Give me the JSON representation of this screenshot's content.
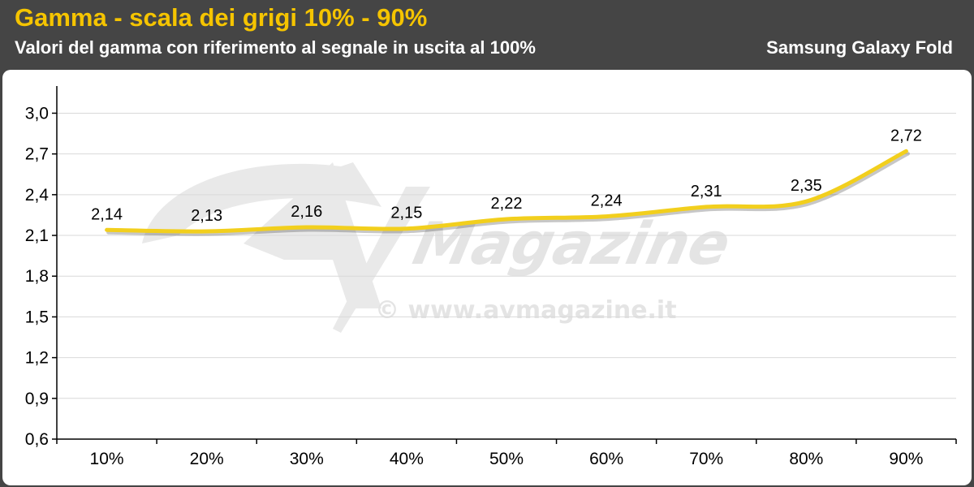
{
  "header": {
    "title": "Gamma - scala dei grigi 10% - 90%",
    "subtitle": "Valori del gamma con riferimento al segnale in uscita al 100%",
    "device": "Samsung Galaxy Fold"
  },
  "watermark": {
    "logo_text": "Magazine",
    "url_text": "© www.avmagazine.it"
  },
  "colors": {
    "accent": "#f5c400",
    "line": "#f2cf1d",
    "header_bg": "#454545",
    "grid": "#d9d9d9"
  },
  "chart_data": {
    "type": "line",
    "categories": [
      "10%",
      "20%",
      "30%",
      "40%",
      "50%",
      "60%",
      "70%",
      "80%",
      "90%"
    ],
    "values": [
      2.14,
      2.13,
      2.16,
      2.15,
      2.22,
      2.24,
      2.31,
      2.35,
      2.72
    ],
    "data_labels": [
      "2,14",
      "2,13",
      "2,16",
      "2,15",
      "2,22",
      "2,24",
      "2,31",
      "2,35",
      "2,72"
    ],
    "y_ticks": [
      0.6,
      0.9,
      1.2,
      1.5,
      1.8,
      2.1,
      2.4,
      2.7,
      3.0
    ],
    "y_tick_labels": [
      "0,6",
      "0,9",
      "1,2",
      "1,5",
      "1,8",
      "2,1",
      "2,4",
      "2,7",
      "3,0"
    ],
    "ylim": [
      0.6,
      3.2
    ],
    "grid": true,
    "legend": "none"
  }
}
